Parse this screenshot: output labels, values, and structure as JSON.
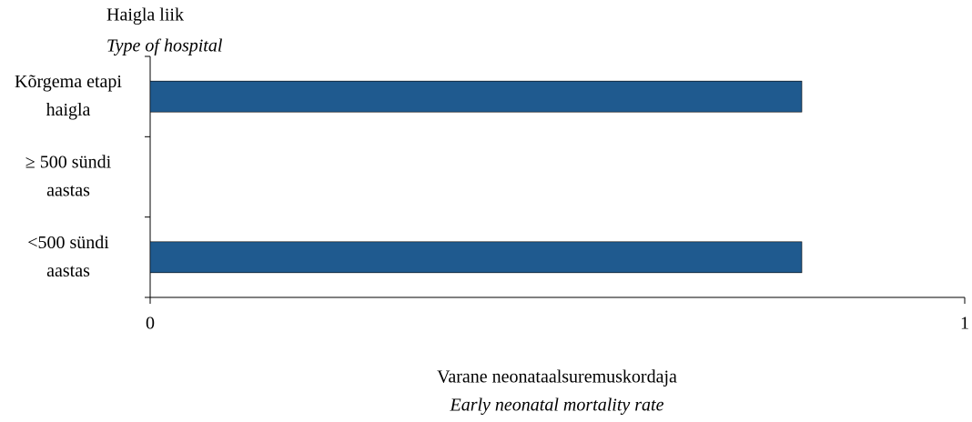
{
  "chart_data": {
    "type": "bar",
    "orientation": "horizontal",
    "y_title": "Haigla liik",
    "y_subtitle": "Type of hospital",
    "x_title": "Varane neonataalsuremuskordaja",
    "x_subtitle": "Early neonatal mortality rate",
    "categories": [
      "Kõrgema etapi haigla",
      "≥ 500 sündi aastas",
      "<500 sündi aastas"
    ],
    "values": [
      0.8,
      0,
      0.8
    ],
    "color": "#1f5a8f",
    "xlim": [
      0,
      1
    ],
    "xticks": [
      0,
      1
    ],
    "grid": false
  }
}
